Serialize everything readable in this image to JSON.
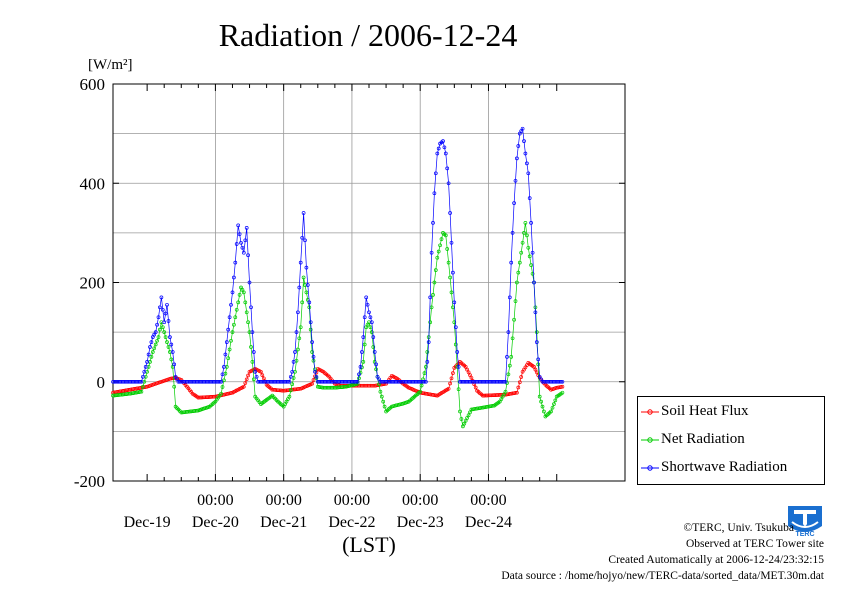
{
  "chart_data": {
    "type": "line",
    "title": "Radiation / 2006-12-24",
    "ylabel": "[W/m²]",
    "xlabel": "(LST)",
    "ylim": [
      -200,
      600
    ],
    "yticks": [
      -200,
      0,
      200,
      400,
      600
    ],
    "x_unit": "hours since start of Dec-19 (LST)",
    "xlim": [
      -12,
      168
    ],
    "x_tick_labels": [
      "00:00",
      "00:00",
      "00:00",
      "00:00",
      "00:00"
    ],
    "x_tick_hours": [
      24,
      48,
      72,
      96,
      120
    ],
    "day_labels": [
      "Dec-19",
      "Dec-20",
      "Dec-21",
      "Dec-22",
      "Dec-23",
      "Dec-24"
    ],
    "grid": true,
    "legend_position": "bottom-right outside",
    "series": [
      {
        "name": "Soil Heat Flux",
        "color": "#ff0000",
        "points": [
          [
            -12,
            -22
          ],
          [
            -4,
            -14
          ],
          [
            0,
            -10
          ],
          [
            4,
            -2
          ],
          [
            8,
            6
          ],
          [
            10,
            8
          ],
          [
            12,
            4
          ],
          [
            14,
            -10
          ],
          [
            16,
            -24
          ],
          [
            18,
            -32
          ],
          [
            24,
            -30
          ],
          [
            30,
            -22
          ],
          [
            34,
            -10
          ],
          [
            36,
            20
          ],
          [
            38,
            26
          ],
          [
            40,
            20
          ],
          [
            42,
            -6
          ],
          [
            44,
            -16
          ],
          [
            48,
            -18
          ],
          [
            54,
            -14
          ],
          [
            58,
            -4
          ],
          [
            60,
            26
          ],
          [
            62,
            20
          ],
          [
            64,
            10
          ],
          [
            66,
            -4
          ],
          [
            68,
            -8
          ],
          [
            72,
            -8
          ],
          [
            80,
            -8
          ],
          [
            84,
            -4
          ],
          [
            86,
            12
          ],
          [
            88,
            6
          ],
          [
            90,
            -4
          ],
          [
            92,
            -12
          ],
          [
            96,
            -22
          ],
          [
            102,
            -28
          ],
          [
            106,
            -14
          ],
          [
            108,
            28
          ],
          [
            110,
            40
          ],
          [
            112,
            30
          ],
          [
            114,
            8
          ],
          [
            116,
            -18
          ],
          [
            118,
            -28
          ],
          [
            126,
            -26
          ],
          [
            130,
            -22
          ],
          [
            132,
            20
          ],
          [
            134,
            38
          ],
          [
            136,
            30
          ],
          [
            138,
            8
          ],
          [
            140,
            -6
          ],
          [
            142,
            -16
          ],
          [
            144,
            -12
          ],
          [
            146,
            -10
          ]
        ]
      },
      {
        "name": "Net Radiation",
        "color": "#00cc00",
        "points": [
          [
            -12,
            -28
          ],
          [
            -6,
            -24
          ],
          [
            -2,
            -20
          ],
          [
            0,
            20
          ],
          [
            2,
            60
          ],
          [
            4,
            90
          ],
          [
            5,
            120
          ],
          [
            6,
            100
          ],
          [
            7,
            80
          ],
          [
            8,
            60
          ],
          [
            9,
            30
          ],
          [
            10,
            -50
          ],
          [
            12,
            -62
          ],
          [
            18,
            -58
          ],
          [
            22,
            -50
          ],
          [
            24,
            -40
          ],
          [
            26,
            -24
          ],
          [
            28,
            30
          ],
          [
            30,
            100
          ],
          [
            32,
            160
          ],
          [
            33,
            190
          ],
          [
            34,
            180
          ],
          [
            35,
            140
          ],
          [
            36,
            100
          ],
          [
            37,
            40
          ],
          [
            38,
            -30
          ],
          [
            40,
            -45
          ],
          [
            44,
            -28
          ],
          [
            46,
            -40
          ],
          [
            48,
            -50
          ],
          [
            50,
            -30
          ],
          [
            52,
            20
          ],
          [
            54,
            110
          ],
          [
            55,
            210
          ],
          [
            56,
            180
          ],
          [
            57,
            150
          ],
          [
            58,
            60
          ],
          [
            60,
            -10
          ],
          [
            62,
            -12
          ],
          [
            66,
            -12
          ],
          [
            70,
            -10
          ],
          [
            74,
            -4
          ],
          [
            76,
            40
          ],
          [
            77,
            110
          ],
          [
            78,
            120
          ],
          [
            79,
            100
          ],
          [
            80,
            40
          ],
          [
            82,
            -20
          ],
          [
            84,
            -60
          ],
          [
            86,
            -50
          ],
          [
            90,
            -44
          ],
          [
            92,
            -40
          ],
          [
            94,
            -30
          ],
          [
            96,
            -20
          ],
          [
            98,
            30
          ],
          [
            100,
            150
          ],
          [
            102,
            250
          ],
          [
            104,
            300
          ],
          [
            105,
            295
          ],
          [
            106,
            240
          ],
          [
            108,
            120
          ],
          [
            110,
            -60
          ],
          [
            111,
            -90
          ],
          [
            114,
            -56
          ],
          [
            118,
            -52
          ],
          [
            122,
            -48
          ],
          [
            124,
            -40
          ],
          [
            126,
            -20
          ],
          [
            128,
            50
          ],
          [
            130,
            200
          ],
          [
            132,
            280
          ],
          [
            133,
            320
          ],
          [
            134,
            270
          ],
          [
            136,
            200
          ],
          [
            137,
            100
          ],
          [
            138,
            -30
          ],
          [
            140,
            -70
          ],
          [
            142,
            -60
          ],
          [
            144,
            -30
          ],
          [
            146,
            -22
          ]
        ]
      },
      {
        "name": "Shortwave Radiation",
        "color": "#0000ff",
        "points": [
          [
            -12,
            0
          ],
          [
            -2,
            0
          ],
          [
            0,
            40
          ],
          [
            1,
            70
          ],
          [
            2,
            90
          ],
          [
            3,
            100
          ],
          [
            4,
            130
          ],
          [
            5,
            170
          ],
          [
            6,
            120
          ],
          [
            7,
            155
          ],
          [
            8,
            90
          ],
          [
            9,
            60
          ],
          [
            10,
            10
          ],
          [
            11,
            0
          ],
          [
            26,
            0
          ],
          [
            27,
            30
          ],
          [
            28,
            80
          ],
          [
            29,
            130
          ],
          [
            30,
            180
          ],
          [
            31,
            240
          ],
          [
            32,
            315
          ],
          [
            33,
            280
          ],
          [
            34,
            260
          ],
          [
            35,
            310
          ],
          [
            36,
            200
          ],
          [
            37,
            100
          ],
          [
            38,
            20
          ],
          [
            39,
            0
          ],
          [
            50,
            0
          ],
          [
            51,
            20
          ],
          [
            52,
            60
          ],
          [
            53,
            140
          ],
          [
            54,
            240
          ],
          [
            55,
            340
          ],
          [
            56,
            230
          ],
          [
            57,
            160
          ],
          [
            58,
            80
          ],
          [
            59,
            20
          ],
          [
            60,
            0
          ],
          [
            74,
            0
          ],
          [
            75,
            30
          ],
          [
            76,
            90
          ],
          [
            77,
            170
          ],
          [
            78,
            140
          ],
          [
            79,
            120
          ],
          [
            80,
            60
          ],
          [
            81,
            10
          ],
          [
            82,
            0
          ],
          [
            98,
            0
          ],
          [
            99,
            80
          ],
          [
            100,
            260
          ],
          [
            101,
            380
          ],
          [
            102,
            460
          ],
          [
            103,
            480
          ],
          [
            104,
            485
          ],
          [
            105,
            460
          ],
          [
            106,
            400
          ],
          [
            107,
            280
          ],
          [
            108,
            160
          ],
          [
            109,
            60
          ],
          [
            110,
            0
          ],
          [
            126,
            0
          ],
          [
            127,
            100
          ],
          [
            128,
            240
          ],
          [
            129,
            360
          ],
          [
            130,
            450
          ],
          [
            131,
            500
          ],
          [
            132,
            510
          ],
          [
            133,
            460
          ],
          [
            134,
            420
          ],
          [
            135,
            320
          ],
          [
            136,
            200
          ],
          [
            137,
            80
          ],
          [
            138,
            10
          ],
          [
            139,
            0
          ],
          [
            146,
            0
          ]
        ]
      }
    ]
  },
  "credits": {
    "copyright": "©TERC, Univ. Tsukuba",
    "observed": "Observed at TERC Tower site",
    "created": "Created Automatically at 2006-12-24/23:32:15",
    "source": "Data source : /home/hojyo/new/TERC-data/sorted_data/MET.30m.dat"
  },
  "logo": {
    "text": "TERC",
    "color": "#1a6fd0"
  }
}
